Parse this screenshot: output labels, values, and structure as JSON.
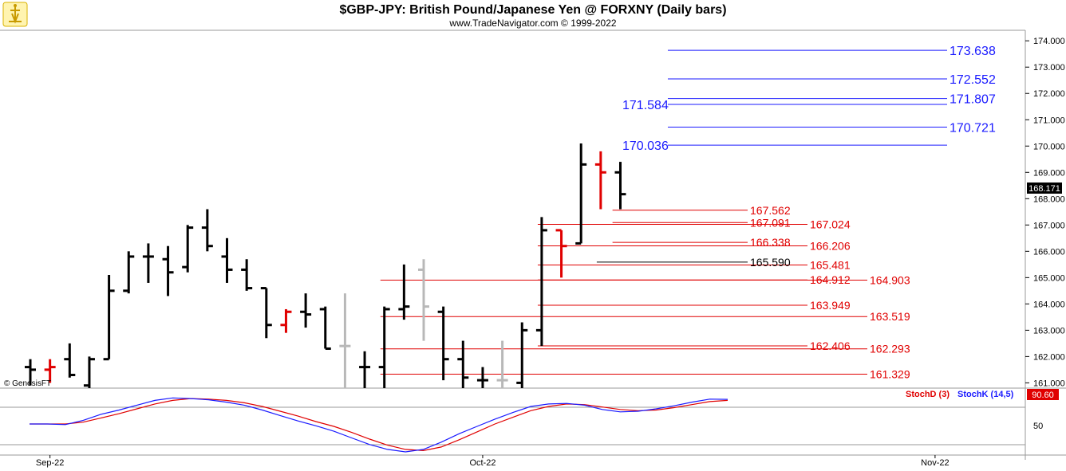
{
  "header": {
    "title": "$GBP-JPY:  British Pound/Japanese Yen @ FORXNY  (Daily bars)",
    "subtitle": "www.TradeNavigator.com © 1999-2022"
  },
  "watermark": "© GenesisFT",
  "price_badge": "168.171",
  "stoch_badge": "90.60",
  "stoch_tick": "50",
  "stoch_legend": {
    "d": "StochD (3)",
    "k": "StochK (14,5)"
  },
  "colors": {
    "bar_black": "#000000",
    "bar_red": "#e00000",
    "bar_gray": "#b8b8b8",
    "bar_green": "#22cc22",
    "blue_level": "#1a1aff",
    "red_level": "#e00000",
    "stoch_d": "#e00000",
    "stoch_k": "#1a1aff"
  },
  "chart_data": {
    "type": "ohlc",
    "ylim": [
      160.8,
      174.4
    ],
    "y_ticks": [
      "174.000",
      "173.000",
      "172.000",
      "171.000",
      "170.000",
      "169.000",
      "168.000",
      "167.000",
      "166.000",
      "165.000",
      "164.000",
      "163.000",
      "162.000",
      "161.000"
    ],
    "x_ticks": [
      {
        "label": "Sep-22",
        "index": 1
      },
      {
        "label": "Oct-22",
        "index": 23
      },
      {
        "label": "Nov-22",
        "index": 46
      }
    ],
    "bars": [
      {
        "o": 161.6,
        "h": 161.9,
        "l": 160.9,
        "c": 161.5,
        "color": "black"
      },
      {
        "o": 161.5,
        "h": 161.9,
        "l": 161.0,
        "c": 161.6,
        "color": "red"
      },
      {
        "o": 161.9,
        "h": 162.5,
        "l": 161.2,
        "c": 161.3,
        "color": "black"
      },
      {
        "o": 160.9,
        "h": 162.0,
        "l": 160.8,
        "c": 161.9,
        "color": "black"
      },
      {
        "o": 161.9,
        "h": 165.1,
        "l": 161.9,
        "c": 164.5,
        "color": "black"
      },
      {
        "o": 164.5,
        "h": 166.0,
        "l": 164.4,
        "c": 165.8,
        "color": "black"
      },
      {
        "o": 165.8,
        "h": 166.3,
        "l": 164.8,
        "c": 165.8,
        "color": "black"
      },
      {
        "o": 165.7,
        "h": 166.2,
        "l": 164.3,
        "c": 165.2,
        "color": "black"
      },
      {
        "o": 165.4,
        "h": 167.0,
        "l": 165.2,
        "c": 166.9,
        "color": "black"
      },
      {
        "o": 166.9,
        "h": 167.6,
        "l": 166.0,
        "c": 166.2,
        "color": "black"
      },
      {
        "o": 165.8,
        "h": 166.5,
        "l": 164.8,
        "c": 165.3,
        "color": "black"
      },
      {
        "o": 165.3,
        "h": 165.7,
        "l": 164.5,
        "c": 164.6,
        "color": "black"
      },
      {
        "o": 164.6,
        "h": 164.6,
        "l": 162.7,
        "c": 163.2,
        "color": "black"
      },
      {
        "o": 163.2,
        "h": 163.8,
        "l": 162.9,
        "c": 163.7,
        "color": "red"
      },
      {
        "o": 163.7,
        "h": 164.4,
        "l": 163.1,
        "c": 163.6,
        "color": "black"
      },
      {
        "o": 163.8,
        "h": 163.9,
        "l": 162.3,
        "c": 162.3,
        "color": "black"
      },
      {
        "o": 162.4,
        "h": 164.4,
        "l": 160.8,
        "c": 162.4,
        "color": "gray"
      },
      {
        "o": 161.6,
        "h": 162.2,
        "l": 160.8,
        "c": 161.6,
        "color": "black"
      },
      {
        "o": 161.6,
        "h": 163.9,
        "l": 160.8,
        "c": 163.8,
        "color": "black"
      },
      {
        "o": 163.8,
        "h": 165.5,
        "l": 163.4,
        "c": 163.9,
        "color": "black"
      },
      {
        "o": 165.3,
        "h": 165.7,
        "l": 162.6,
        "c": 163.9,
        "color": "gray"
      },
      {
        "o": 163.7,
        "h": 163.9,
        "l": 161.1,
        "c": 161.9,
        "color": "black"
      },
      {
        "o": 161.9,
        "h": 162.6,
        "l": 160.8,
        "c": 161.2,
        "color": "black"
      },
      {
        "o": 161.1,
        "h": 161.6,
        "l": 160.8,
        "c": 161.1,
        "color": "black"
      },
      {
        "o": 161.1,
        "h": 162.6,
        "l": 160.8,
        "c": 161.1,
        "color": "gray"
      },
      {
        "o": 161.0,
        "h": 163.3,
        "l": 160.8,
        "c": 163.0,
        "color": "black"
      },
      {
        "o": 163.0,
        "h": 167.3,
        "l": 162.4,
        "c": 166.8,
        "color": "black"
      },
      {
        "o": 166.8,
        "h": 166.8,
        "l": 165.0,
        "c": 166.2,
        "color": "red"
      },
      {
        "o": 166.3,
        "h": 170.1,
        "l": 166.3,
        "c": 169.3,
        "color": "black"
      },
      {
        "o": 169.3,
        "h": 169.8,
        "l": 167.6,
        "c": 169.0,
        "color": "red"
      },
      {
        "o": 169.0,
        "h": 169.4,
        "l": 167.6,
        "c": 168.171,
        "color": "black"
      }
    ],
    "levels_blue": [
      {
        "value": 173.638,
        "label": "173.638",
        "label_pos": "right"
      },
      {
        "value": 172.552,
        "label": "172.552",
        "label_pos": "right"
      },
      {
        "value": 171.807,
        "label": "171.807",
        "label_pos": "right"
      },
      {
        "value": 171.584,
        "label": "171.584",
        "label_pos": "left"
      },
      {
        "value": 170.721,
        "label": "170.721",
        "label_pos": "right"
      },
      {
        "value": 170.036,
        "label": "170.036",
        "label_pos": "left"
      }
    ],
    "levels_red": [
      {
        "value": 167.562,
        "label": "167.562",
        "from_bar": 29.6
      },
      {
        "value": 167.091,
        "label": "167.091",
        "from_bar": 29.6
      },
      {
        "value": 167.024,
        "label": "167.024",
        "from_bar": 25.8
      },
      {
        "value": 166.338,
        "label": "166.338",
        "from_bar": 29.6
      },
      {
        "value": 166.206,
        "label": "166.206",
        "from_bar": 25.8
      },
      {
        "value": 165.481,
        "label": "165.481",
        "from_bar": 25.8
      },
      {
        "value": 164.912,
        "label": "164.912",
        "from_bar": 25.8
      },
      {
        "value": 164.903,
        "label": "164.903",
        "from_bar": 17.8
      },
      {
        "value": 163.949,
        "label": "163.949",
        "from_bar": 25.8
      },
      {
        "value": 163.519,
        "label": "163.519",
        "from_bar": 17.8
      },
      {
        "value": 162.406,
        "label": "162.406",
        "from_bar": 25.8
      },
      {
        "value": 162.293,
        "label": "162.293",
        "from_bar": 17.8
      },
      {
        "value": 161.329,
        "label": "161.329",
        "from_bar": 17.8
      }
    ],
    "levels_black": [
      {
        "value": 165.59,
        "label": "165.590",
        "from_bar": 28.8
      }
    ],
    "stochastic": {
      "ylim": [
        0,
        100
      ],
      "stoch_k": [
        50,
        50,
        49,
        56,
        66,
        73,
        81,
        89,
        93,
        92,
        90,
        86,
        81,
        73,
        64,
        55,
        47,
        38,
        27,
        16,
        8,
        4,
        8,
        20,
        34,
        46,
        58,
        69,
        79,
        83,
        84,
        81,
        74,
        70,
        71,
        75,
        80,
        86,
        91,
        90.6
      ],
      "stoch_d": [
        50,
        50,
        50,
        53,
        60,
        67,
        75,
        83,
        89,
        92,
        91,
        89,
        85,
        79,
        71,
        63,
        54,
        46,
        36,
        25,
        15,
        8,
        6,
        12,
        24,
        37,
        50,
        61,
        72,
        79,
        83,
        82,
        78,
        74,
        72,
        73,
        77,
        82,
        87,
        89
      ]
    }
  }
}
